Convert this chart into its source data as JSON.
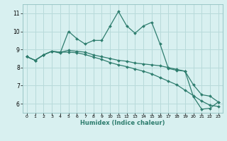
{
  "xlabel": "Humidex (Indice chaleur)",
  "x_values": [
    0,
    1,
    2,
    3,
    4,
    5,
    6,
    7,
    8,
    9,
    10,
    11,
    12,
    13,
    14,
    15,
    16,
    17,
    18,
    19,
    20,
    21,
    22,
    23
  ],
  "line1": [
    8.6,
    8.4,
    8.7,
    8.9,
    8.8,
    10.0,
    9.6,
    9.3,
    9.5,
    9.5,
    10.3,
    11.1,
    10.3,
    9.9,
    10.3,
    10.5,
    9.3,
    7.95,
    7.85,
    7.8,
    6.4,
    5.7,
    5.75,
    6.1
  ],
  "line2": [
    8.6,
    8.4,
    8.7,
    8.9,
    8.85,
    8.95,
    8.9,
    8.85,
    8.7,
    8.6,
    8.5,
    8.4,
    8.35,
    8.25,
    8.2,
    8.15,
    8.1,
    8.0,
    7.9,
    7.8,
    7.05,
    6.5,
    6.42,
    6.1
  ],
  "line3": [
    8.6,
    8.4,
    8.7,
    8.9,
    8.85,
    8.85,
    8.82,
    8.72,
    8.58,
    8.45,
    8.28,
    8.15,
    8.05,
    7.92,
    7.8,
    7.65,
    7.45,
    7.25,
    7.05,
    6.75,
    6.45,
    6.15,
    5.92,
    5.85
  ],
  "line_color": "#2e7d6e",
  "bg_color": "#d8f0f0",
  "grid_color": "#b8dada",
  "ylim": [
    5.5,
    11.5
  ],
  "xlim": [
    -0.5,
    23.5
  ],
  "yticks": [
    6,
    7,
    8,
    9,
    10,
    11
  ],
  "xticks": [
    0,
    1,
    2,
    3,
    4,
    5,
    6,
    7,
    8,
    9,
    10,
    11,
    12,
    13,
    14,
    15,
    16,
    17,
    18,
    19,
    20,
    21,
    22,
    23
  ]
}
